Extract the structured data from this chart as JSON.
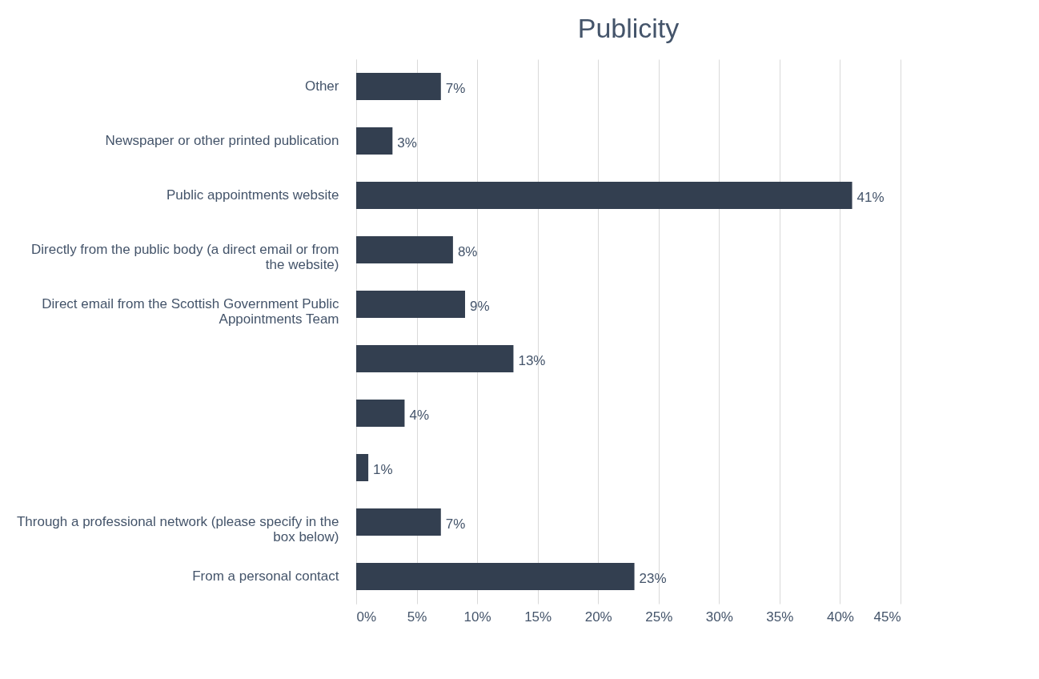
{
  "chart_data": {
    "type": "bar",
    "orientation": "horizontal",
    "title": "Publicity",
    "categories": [
      "Other",
      "Newspaper or other printed publication",
      "Public appointments website",
      "Directly from the public body (a direct email or from the website)",
      "Direct email from the Scottish Government Public Appointments Team",
      null,
      null,
      null,
      "Through a professional network (please specify in the box below)",
      "From a personal contact"
    ],
    "values": [
      7,
      3,
      41,
      8,
      9,
      13,
      4,
      1,
      7,
      23
    ],
    "value_labels": [
      "7%",
      "3%",
      "41%",
      "8%",
      "9%",
      "13%",
      "4%",
      "1%",
      "7%",
      "23%"
    ],
    "color": "#333f50",
    "xlim": [
      0,
      45
    ],
    "xticks": [
      {
        "value": 0,
        "label": "0%"
      },
      {
        "value": 5,
        "label": "5%"
      },
      {
        "value": 10,
        "label": "10%"
      },
      {
        "value": 15,
        "label": "15%"
      },
      {
        "value": 20,
        "label": "20%"
      },
      {
        "value": 25,
        "label": "25%"
      },
      {
        "value": 30,
        "label": "30%"
      },
      {
        "value": 35,
        "label": "35%"
      },
      {
        "value": 40,
        "label": "40%"
      },
      {
        "value": 45,
        "label": "45%"
      }
    ],
    "grid": "x"
  }
}
